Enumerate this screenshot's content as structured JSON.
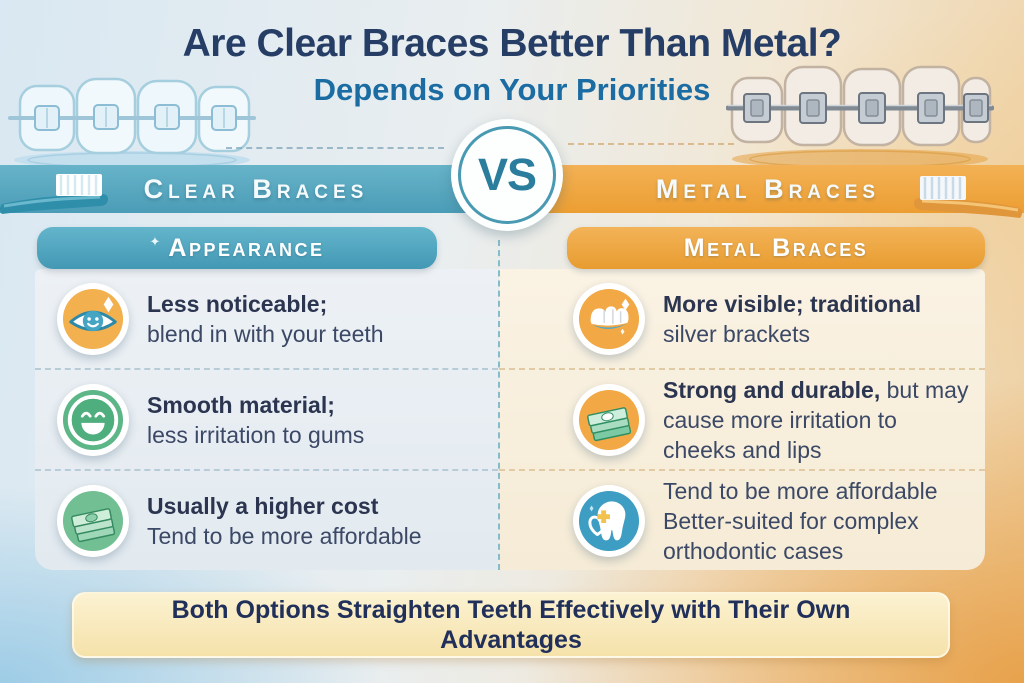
{
  "title": "Are Clear Braces Better Than Metal?",
  "subtitle": "Depends on Your Priorities",
  "vs_label": "VS",
  "band": {
    "left_label": "Clear Braces",
    "right_label": "Metal Braces"
  },
  "colors": {
    "accent_teal": "#4b9cb7",
    "accent_orange": "#ec9e32",
    "title_navy": "#263e66",
    "subtitle_blue": "#1b6ca2",
    "text_bold": "#2b3550",
    "text_regular": "#3c4966",
    "icon_green": "#5cb687",
    "icon_blue": "#3d9dc2",
    "icon_orange": "#f1a845",
    "footer_cream": "#f7e7bd"
  },
  "columns": {
    "left": {
      "header": "Appearance",
      "items": [
        {
          "icon": "eye-icon",
          "lines": [
            [
              {
                "text": "Less noticeable;",
                "bold": true
              }
            ],
            [
              {
                "text": "blend in with your teeth",
                "bold": false
              }
            ]
          ]
        },
        {
          "icon": "smile-icon",
          "lines": [
            [
              {
                "text": "Smooth material;",
                "bold": true
              }
            ],
            [
              {
                "text": "less irritation to gums",
                "bold": false
              }
            ]
          ]
        },
        {
          "icon": "money-icon",
          "lines": [
            [
              {
                "text": "Usually a higher cost",
                "bold": true
              }
            ],
            [
              {
                "text": "Tend to be more affordable",
                "bold": false
              }
            ]
          ]
        }
      ]
    },
    "right": {
      "header": "Metal Braces",
      "items": [
        {
          "icon": "mouth-icon",
          "lines": [
            [
              {
                "text": "More visible; traditional",
                "bold": true
              }
            ],
            [
              {
                "text": "silver brackets",
                "bold": false
              }
            ]
          ]
        },
        {
          "icon": "money-icon",
          "lines": [
            [
              {
                "text": "Strong and durable,",
                "bold": true
              },
              {
                "text": " but may",
                "bold": false
              }
            ],
            [
              {
                "text": "cause more irritation to",
                "bold": false
              }
            ],
            [
              {
                "text": "cheeks and lips",
                "bold": false
              }
            ]
          ]
        },
        {
          "icon": "tooth-icon",
          "lines": [
            [
              {
                "text": "Tend to be more affordable",
                "bold": false
              }
            ],
            [
              {
                "text": "Better-suited for complex",
                "bold": false
              }
            ],
            [
              {
                "text": "orthodontic cases",
                "bold": false
              }
            ]
          ]
        }
      ]
    }
  },
  "footer": {
    "line1": "Both Options Straighten Teeth Effectively with Their Own",
    "line2": "Advantages"
  }
}
